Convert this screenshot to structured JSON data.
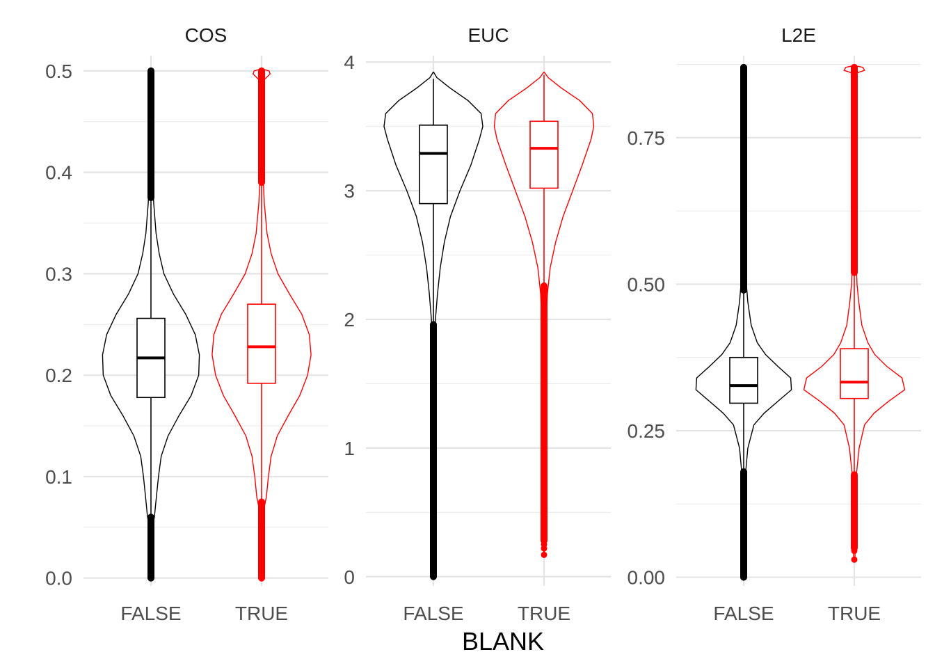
{
  "chart_data": {
    "type": "violin",
    "xlabel": "BLANK",
    "categories": [
      "FALSE",
      "TRUE"
    ],
    "colors": {
      "FALSE": "#000000",
      "TRUE": "#ff0000"
    },
    "grid": true,
    "panels": [
      {
        "title": "COS",
        "ylim": [
          -0.005,
          0.515
        ],
        "yticks": [
          0.0,
          0.1,
          0.2,
          0.3,
          0.4,
          0.5
        ],
        "tick_labels": [
          "0.0",
          "0.1",
          "0.2",
          "0.3",
          "0.4",
          "0.5"
        ],
        "groups": [
          {
            "name": "FALSE",
            "q1": 0.178,
            "median": 0.217,
            "q3": 0.256,
            "whisker_low": 0.062,
            "whisker_high": 0.373,
            "outlier_ranges": [
              [
                0.0,
                0.06
              ],
              [
                0.375,
                0.5
              ]
            ],
            "outlier_points": [],
            "violin": [
              [
                0.0,
                0.004
              ],
              [
                0.05,
                0.004
              ],
              [
                0.06,
                0.01
              ],
              [
                0.08,
                0.016
              ],
              [
                0.1,
                0.022
              ],
              [
                0.12,
                0.03
              ],
              [
                0.14,
                0.05
              ],
              [
                0.16,
                0.082
              ],
              [
                0.18,
                0.118
              ],
              [
                0.2,
                0.14
              ],
              [
                0.22,
                0.142
              ],
              [
                0.24,
                0.13
              ],
              [
                0.26,
                0.102
              ],
              [
                0.28,
                0.066
              ],
              [
                0.3,
                0.038
              ],
              [
                0.32,
                0.024
              ],
              [
                0.34,
                0.015
              ],
              [
                0.37,
                0.008
              ],
              [
                0.4,
                0.004
              ],
              [
                0.45,
                0.002
              ],
              [
                0.5,
                0.001
              ]
            ]
          },
          {
            "name": "TRUE",
            "q1": 0.192,
            "median": 0.228,
            "q3": 0.27,
            "whisker_low": 0.075,
            "whisker_high": 0.39,
            "outlier_ranges": [
              [
                0.0,
                0.075
              ],
              [
                0.39,
                0.5
              ]
            ],
            "outlier_points": [],
            "violin": [
              [
                0.0,
                0.003
              ],
              [
                0.05,
                0.004
              ],
              [
                0.07,
                0.008
              ],
              [
                0.08,
                0.014
              ],
              [
                0.1,
                0.02
              ],
              [
                0.12,
                0.028
              ],
              [
                0.14,
                0.046
              ],
              [
                0.16,
                0.078
              ],
              [
                0.18,
                0.112
              ],
              [
                0.2,
                0.135
              ],
              [
                0.22,
                0.145
              ],
              [
                0.24,
                0.14
              ],
              [
                0.26,
                0.118
              ],
              [
                0.28,
                0.082
              ],
              [
                0.3,
                0.048
              ],
              [
                0.32,
                0.028
              ],
              [
                0.34,
                0.016
              ],
              [
                0.37,
                0.008
              ],
              [
                0.4,
                0.004
              ],
              [
                0.45,
                0.002
              ],
              [
                0.49,
                0.004
              ],
              [
                0.497,
                0.025
              ],
              [
                0.5,
                0.022
              ],
              [
                0.502,
                0.001
              ]
            ]
          }
        ]
      },
      {
        "title": "EUC",
        "ylim": [
          -0.05,
          4.05
        ],
        "yticks": [
          0,
          1,
          2,
          3,
          4
        ],
        "tick_labels": [
          "0",
          "1",
          "2",
          "3",
          "4"
        ],
        "groups": [
          {
            "name": "FALSE",
            "q1": 2.9,
            "median": 3.29,
            "q3": 3.51,
            "whisker_low": 1.97,
            "whisker_high": 3.87,
            "outlier_ranges": [
              [
                0.0,
                1.96
              ]
            ],
            "outlier_points": [],
            "violin": [
              [
                0.0,
                0.001
              ],
              [
                1.0,
                0.002
              ],
              [
                1.8,
                0.003
              ],
              [
                2.0,
                0.006
              ],
              [
                2.2,
                0.012
              ],
              [
                2.4,
                0.02
              ],
              [
                2.6,
                0.032
              ],
              [
                2.8,
                0.05
              ],
              [
                3.0,
                0.078
              ],
              [
                3.2,
                0.11
              ],
              [
                3.4,
                0.135
              ],
              [
                3.5,
                0.145
              ],
              [
                3.6,
                0.14
              ],
              [
                3.7,
                0.102
              ],
              [
                3.8,
                0.048
              ],
              [
                3.88,
                0.01
              ],
              [
                3.92,
                0.001
              ]
            ]
          },
          {
            "name": "TRUE",
            "q1": 3.02,
            "median": 3.33,
            "q3": 3.54,
            "whisker_low": 2.27,
            "whisker_high": 3.9,
            "outlier_ranges": [
              [
                0.28,
                2.26
              ]
            ],
            "outlier_points": [
              0.17,
              0.22,
              0.25
            ],
            "violin": [
              [
                0.17,
                0.001
              ],
              [
                1.0,
                0.002
              ],
              [
                1.8,
                0.004
              ],
              [
                2.2,
                0.01
              ],
              [
                2.4,
                0.018
              ],
              [
                2.6,
                0.034
              ],
              [
                2.8,
                0.056
              ],
              [
                3.0,
                0.084
              ],
              [
                3.2,
                0.112
              ],
              [
                3.4,
                0.138
              ],
              [
                3.5,
                0.146
              ],
              [
                3.6,
                0.142
              ],
              [
                3.7,
                0.105
              ],
              [
                3.8,
                0.05
              ],
              [
                3.88,
                0.012
              ],
              [
                3.92,
                0.001
              ]
            ]
          }
        ]
      },
      {
        "title": "L2E",
        "ylim": [
          -0.01,
          0.89
        ],
        "yticks": [
          0.0,
          0.25,
          0.5,
          0.75
        ],
        "tick_labels": [
          "0.00",
          "0.25",
          "0.50",
          "0.75"
        ],
        "groups": [
          {
            "name": "FALSE",
            "q1": 0.297,
            "median": 0.327,
            "q3": 0.375,
            "whisker_low": 0.18,
            "whisker_high": 0.49,
            "outlier_ranges": [
              [
                0.0,
                0.18
              ],
              [
                0.49,
                0.87
              ]
            ],
            "outlier_points": [],
            "violin": [
              [
                0.0,
                0.002
              ],
              [
                0.15,
                0.003
              ],
              [
                0.18,
                0.006
              ],
              [
                0.22,
                0.012
              ],
              [
                0.26,
                0.03
              ],
              [
                0.28,
                0.06
              ],
              [
                0.3,
                0.1
              ],
              [
                0.32,
                0.14
              ],
              [
                0.34,
                0.138
              ],
              [
                0.36,
                0.1
              ],
              [
                0.38,
                0.064
              ],
              [
                0.4,
                0.04
              ],
              [
                0.43,
                0.022
              ],
              [
                0.47,
                0.012
              ],
              [
                0.5,
                0.008
              ],
              [
                0.55,
                0.004
              ],
              [
                0.6,
                0.003
              ],
              [
                0.8,
                0.002
              ],
              [
                0.87,
                0.001
              ]
            ]
          },
          {
            "name": "TRUE",
            "q1": 0.305,
            "median": 0.333,
            "q3": 0.39,
            "whisker_low": 0.18,
            "whisker_high": 0.52,
            "outlier_ranges": [
              [
                0.05,
                0.175
              ],
              [
                0.52,
                0.87
              ]
            ],
            "outlier_points": [
              0.03,
              0.045
            ],
            "violin": [
              [
                0.03,
                0.002
              ],
              [
                0.15,
                0.004
              ],
              [
                0.18,
                0.007
              ],
              [
                0.22,
                0.014
              ],
              [
                0.26,
                0.03
              ],
              [
                0.28,
                0.058
              ],
              [
                0.3,
                0.1
              ],
              [
                0.32,
                0.148
              ],
              [
                0.34,
                0.14
              ],
              [
                0.36,
                0.095
              ],
              [
                0.38,
                0.06
              ],
              [
                0.4,
                0.04
              ],
              [
                0.43,
                0.022
              ],
              [
                0.47,
                0.013
              ],
              [
                0.5,
                0.008
              ],
              [
                0.55,
                0.005
              ],
              [
                0.6,
                0.003
              ],
              [
                0.8,
                0.003
              ],
              [
                0.86,
                0.004
              ],
              [
                0.865,
                0.03
              ],
              [
                0.87,
                0.025
              ],
              [
                0.873,
                0.001
              ]
            ]
          }
        ]
      }
    ]
  }
}
